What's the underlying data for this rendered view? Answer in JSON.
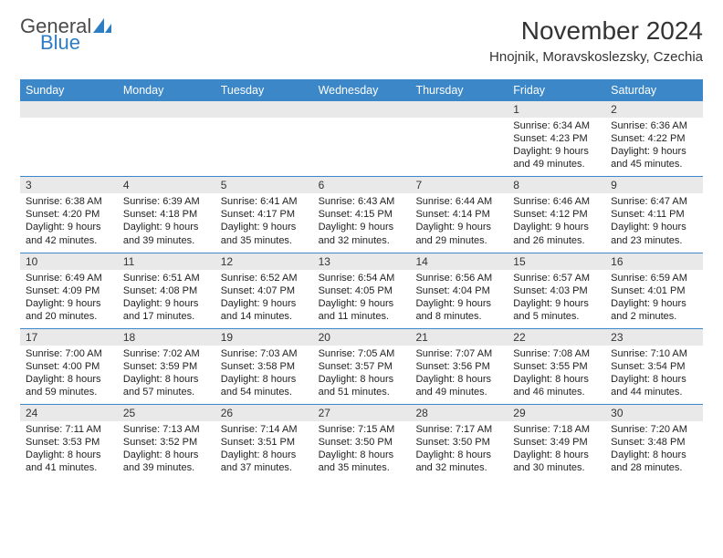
{
  "logo": {
    "word1": "General",
    "word2": "Blue"
  },
  "title": "November 2024",
  "location": "Hnojnik, Moravskoslezsky, Czechia",
  "day_headers": [
    "Sunday",
    "Monday",
    "Tuesday",
    "Wednesday",
    "Thursday",
    "Friday",
    "Saturday"
  ],
  "colors": {
    "header_bg": "#3b87c8",
    "header_text": "#ffffff",
    "daynum_bg": "#e9e9e9",
    "divider": "#3b87c8",
    "body_text": "#222222",
    "logo_gray": "#4a4a4a",
    "logo_blue": "#2d7dc4"
  },
  "typography": {
    "title_fontsize": 28,
    "location_fontsize": 15,
    "day_header_fontsize": 12.5,
    "daynum_fontsize": 12,
    "cell_fontsize": 11,
    "logo_fontsize": 22
  },
  "weeks": [
    {
      "nums": [
        "",
        "",
        "",
        "",
        "",
        "1",
        "2"
      ],
      "cells": [
        {},
        {},
        {},
        {},
        {},
        {
          "sunrise": "Sunrise: 6:34 AM",
          "sunset": "Sunset: 4:23 PM",
          "day1": "Daylight: 9 hours",
          "day2": "and 49 minutes."
        },
        {
          "sunrise": "Sunrise: 6:36 AM",
          "sunset": "Sunset: 4:22 PM",
          "day1": "Daylight: 9 hours",
          "day2": "and 45 minutes."
        }
      ]
    },
    {
      "nums": [
        "3",
        "4",
        "5",
        "6",
        "7",
        "8",
        "9"
      ],
      "cells": [
        {
          "sunrise": "Sunrise: 6:38 AM",
          "sunset": "Sunset: 4:20 PM",
          "day1": "Daylight: 9 hours",
          "day2": "and 42 minutes."
        },
        {
          "sunrise": "Sunrise: 6:39 AM",
          "sunset": "Sunset: 4:18 PM",
          "day1": "Daylight: 9 hours",
          "day2": "and 39 minutes."
        },
        {
          "sunrise": "Sunrise: 6:41 AM",
          "sunset": "Sunset: 4:17 PM",
          "day1": "Daylight: 9 hours",
          "day2": "and 35 minutes."
        },
        {
          "sunrise": "Sunrise: 6:43 AM",
          "sunset": "Sunset: 4:15 PM",
          "day1": "Daylight: 9 hours",
          "day2": "and 32 minutes."
        },
        {
          "sunrise": "Sunrise: 6:44 AM",
          "sunset": "Sunset: 4:14 PM",
          "day1": "Daylight: 9 hours",
          "day2": "and 29 minutes."
        },
        {
          "sunrise": "Sunrise: 6:46 AM",
          "sunset": "Sunset: 4:12 PM",
          "day1": "Daylight: 9 hours",
          "day2": "and 26 minutes."
        },
        {
          "sunrise": "Sunrise: 6:47 AM",
          "sunset": "Sunset: 4:11 PM",
          "day1": "Daylight: 9 hours",
          "day2": "and 23 minutes."
        }
      ]
    },
    {
      "nums": [
        "10",
        "11",
        "12",
        "13",
        "14",
        "15",
        "16"
      ],
      "cells": [
        {
          "sunrise": "Sunrise: 6:49 AM",
          "sunset": "Sunset: 4:09 PM",
          "day1": "Daylight: 9 hours",
          "day2": "and 20 minutes."
        },
        {
          "sunrise": "Sunrise: 6:51 AM",
          "sunset": "Sunset: 4:08 PM",
          "day1": "Daylight: 9 hours",
          "day2": "and 17 minutes."
        },
        {
          "sunrise": "Sunrise: 6:52 AM",
          "sunset": "Sunset: 4:07 PM",
          "day1": "Daylight: 9 hours",
          "day2": "and 14 minutes."
        },
        {
          "sunrise": "Sunrise: 6:54 AM",
          "sunset": "Sunset: 4:05 PM",
          "day1": "Daylight: 9 hours",
          "day2": "and 11 minutes."
        },
        {
          "sunrise": "Sunrise: 6:56 AM",
          "sunset": "Sunset: 4:04 PM",
          "day1": "Daylight: 9 hours",
          "day2": "and 8 minutes."
        },
        {
          "sunrise": "Sunrise: 6:57 AM",
          "sunset": "Sunset: 4:03 PM",
          "day1": "Daylight: 9 hours",
          "day2": "and 5 minutes."
        },
        {
          "sunrise": "Sunrise: 6:59 AM",
          "sunset": "Sunset: 4:01 PM",
          "day1": "Daylight: 9 hours",
          "day2": "and 2 minutes."
        }
      ]
    },
    {
      "nums": [
        "17",
        "18",
        "19",
        "20",
        "21",
        "22",
        "23"
      ],
      "cells": [
        {
          "sunrise": "Sunrise: 7:00 AM",
          "sunset": "Sunset: 4:00 PM",
          "day1": "Daylight: 8 hours",
          "day2": "and 59 minutes."
        },
        {
          "sunrise": "Sunrise: 7:02 AM",
          "sunset": "Sunset: 3:59 PM",
          "day1": "Daylight: 8 hours",
          "day2": "and 57 minutes."
        },
        {
          "sunrise": "Sunrise: 7:03 AM",
          "sunset": "Sunset: 3:58 PM",
          "day1": "Daylight: 8 hours",
          "day2": "and 54 minutes."
        },
        {
          "sunrise": "Sunrise: 7:05 AM",
          "sunset": "Sunset: 3:57 PM",
          "day1": "Daylight: 8 hours",
          "day2": "and 51 minutes."
        },
        {
          "sunrise": "Sunrise: 7:07 AM",
          "sunset": "Sunset: 3:56 PM",
          "day1": "Daylight: 8 hours",
          "day2": "and 49 minutes."
        },
        {
          "sunrise": "Sunrise: 7:08 AM",
          "sunset": "Sunset: 3:55 PM",
          "day1": "Daylight: 8 hours",
          "day2": "and 46 minutes."
        },
        {
          "sunrise": "Sunrise: 7:10 AM",
          "sunset": "Sunset: 3:54 PM",
          "day1": "Daylight: 8 hours",
          "day2": "and 44 minutes."
        }
      ]
    },
    {
      "nums": [
        "24",
        "25",
        "26",
        "27",
        "28",
        "29",
        "30"
      ],
      "cells": [
        {
          "sunrise": "Sunrise: 7:11 AM",
          "sunset": "Sunset: 3:53 PM",
          "day1": "Daylight: 8 hours",
          "day2": "and 41 minutes."
        },
        {
          "sunrise": "Sunrise: 7:13 AM",
          "sunset": "Sunset: 3:52 PM",
          "day1": "Daylight: 8 hours",
          "day2": "and 39 minutes."
        },
        {
          "sunrise": "Sunrise: 7:14 AM",
          "sunset": "Sunset: 3:51 PM",
          "day1": "Daylight: 8 hours",
          "day2": "and 37 minutes."
        },
        {
          "sunrise": "Sunrise: 7:15 AM",
          "sunset": "Sunset: 3:50 PM",
          "day1": "Daylight: 8 hours",
          "day2": "and 35 minutes."
        },
        {
          "sunrise": "Sunrise: 7:17 AM",
          "sunset": "Sunset: 3:50 PM",
          "day1": "Daylight: 8 hours",
          "day2": "and 32 minutes."
        },
        {
          "sunrise": "Sunrise: 7:18 AM",
          "sunset": "Sunset: 3:49 PM",
          "day1": "Daylight: 8 hours",
          "day2": "and 30 minutes."
        },
        {
          "sunrise": "Sunrise: 7:20 AM",
          "sunset": "Sunset: 3:48 PM",
          "day1": "Daylight: 8 hours",
          "day2": "and 28 minutes."
        }
      ]
    }
  ]
}
